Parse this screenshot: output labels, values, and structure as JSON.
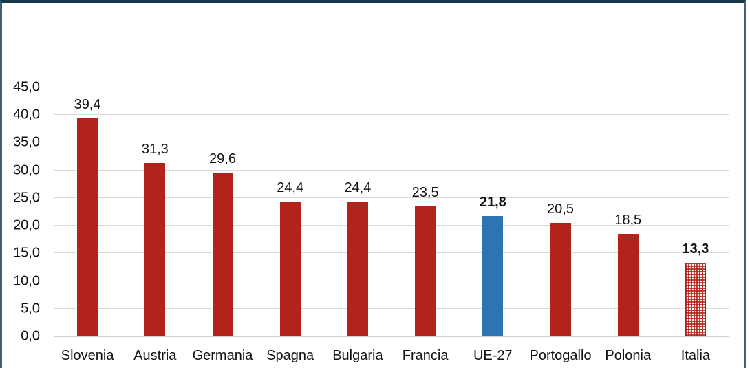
{
  "chart_data": {
    "type": "bar",
    "title": "",
    "xlabel": "",
    "ylabel": "",
    "categories": [
      "Slovenia",
      "Austria",
      "Germania",
      "Spagna",
      "Bulgaria",
      "Francia",
      "UE-27",
      "Portogallo",
      "Polonia",
      "Italia"
    ],
    "values": [
      39.4,
      31.3,
      29.6,
      24.4,
      24.4,
      23.5,
      21.8,
      20.5,
      18.5,
      13.3
    ],
    "value_labels": [
      "39,4",
      "31,3",
      "29,6",
      "24,4",
      "24,4",
      "23,5",
      "21,8",
      "20,5",
      "18,5",
      "13,3"
    ],
    "bold_labels": [
      false,
      false,
      false,
      false,
      false,
      false,
      true,
      false,
      false,
      true
    ],
    "bar_styles": [
      "solid-red",
      "solid-red",
      "solid-red",
      "solid-red",
      "solid-red",
      "solid-red",
      "solid-blue",
      "solid-red",
      "solid-red",
      "pattern-red"
    ],
    "ylim": [
      0,
      45
    ],
    "ytick_step": 5,
    "ytick_labels": [
      "0,0",
      "5,0",
      "10,0",
      "15,0",
      "20,0",
      "25,0",
      "30,0",
      "35,0",
      "40,0",
      "45,0"
    ],
    "grid": true,
    "legend": "none",
    "colors": {
      "bar_red": "#B2231B",
      "bar_blue": "#2E74B5",
      "gridline": "#D9D9D9",
      "axis_line": "#D2D0D0",
      "text": "#111111",
      "frame_top": "#17374A",
      "frame_sides": "#426178"
    }
  }
}
